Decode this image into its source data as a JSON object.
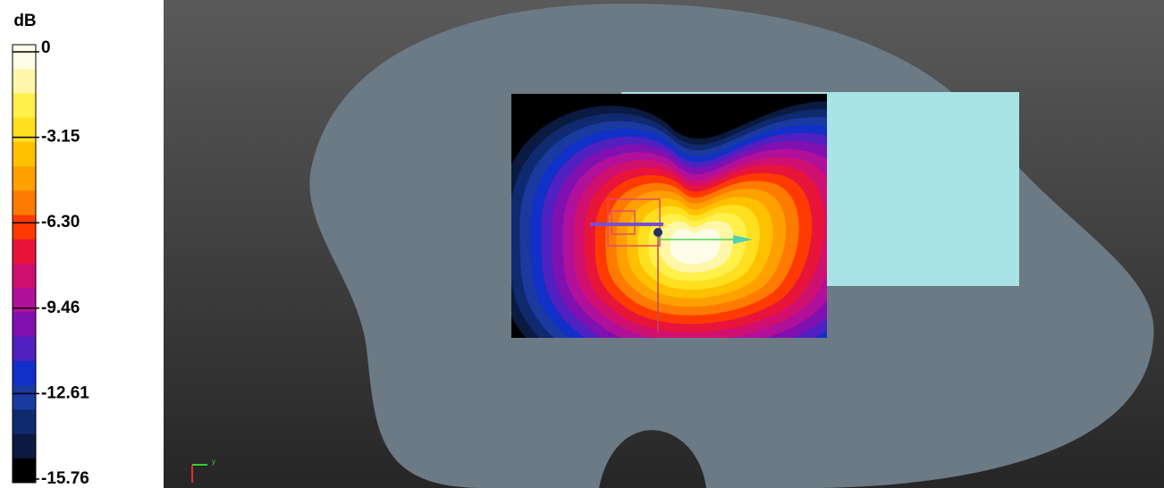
{
  "colorbar": {
    "title": "dB",
    "labels": [
      "0",
      "-3.15",
      "-6.30",
      "-9.46",
      "-12.61",
      "-15.76"
    ]
  },
  "axes_indicator": {
    "y_label": "y"
  }
}
